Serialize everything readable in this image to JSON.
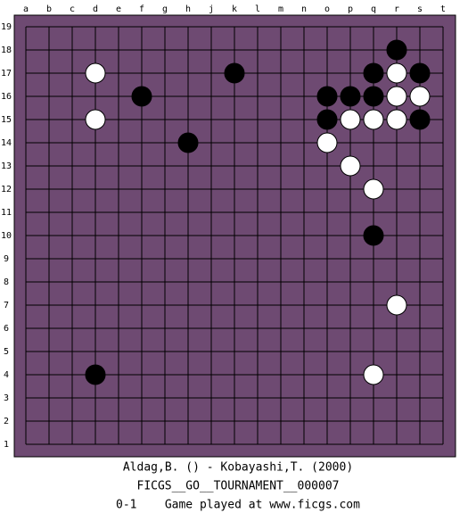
{
  "board": {
    "columns": [
      "a",
      "b",
      "c",
      "d",
      "e",
      "f",
      "g",
      "h",
      "j",
      "k",
      "l",
      "m",
      "n",
      "o",
      "p",
      "q",
      "r",
      "s",
      "t"
    ],
    "rows": [
      19,
      18,
      17,
      16,
      15,
      14,
      13,
      12,
      11,
      10,
      9,
      8,
      7,
      6,
      5,
      4,
      3,
      2,
      1
    ],
    "stones": [
      {
        "color": "black",
        "x": "r",
        "y": 18
      },
      {
        "color": "white",
        "x": "d",
        "y": 17
      },
      {
        "color": "black",
        "x": "k",
        "y": 17
      },
      {
        "color": "black",
        "x": "q",
        "y": 17
      },
      {
        "color": "white",
        "x": "r",
        "y": 17
      },
      {
        "color": "black",
        "x": "s",
        "y": 17
      },
      {
        "color": "black",
        "x": "f",
        "y": 16
      },
      {
        "color": "black",
        "x": "o",
        "y": 16
      },
      {
        "color": "black",
        "x": "p",
        "y": 16
      },
      {
        "color": "black",
        "x": "q",
        "y": 16
      },
      {
        "color": "white",
        "x": "r",
        "y": 16
      },
      {
        "color": "white",
        "x": "s",
        "y": 16
      },
      {
        "color": "white",
        "x": "d",
        "y": 15
      },
      {
        "color": "black",
        "x": "o",
        "y": 15
      },
      {
        "color": "white",
        "x": "p",
        "y": 15
      },
      {
        "color": "white",
        "x": "q",
        "y": 15
      },
      {
        "color": "white",
        "x": "r",
        "y": 15
      },
      {
        "color": "black",
        "x": "s",
        "y": 15
      },
      {
        "color": "black",
        "x": "h",
        "y": 14
      },
      {
        "color": "white",
        "x": "o",
        "y": 14
      },
      {
        "color": "white",
        "x": "p",
        "y": 13
      },
      {
        "color": "white",
        "x": "q",
        "y": 12
      },
      {
        "color": "black",
        "x": "q",
        "y": 10
      },
      {
        "color": "white",
        "x": "r",
        "y": 7
      },
      {
        "color": "black",
        "x": "d",
        "y": 4
      },
      {
        "color": "white",
        "x": "q",
        "y": 4
      }
    ]
  },
  "footer": [
    "Aldag,B. () - Kobayashi,T. (2000)",
    "FICGS__GO__TOURNAMENT__000007",
    "0-1    Game played at www.ficgs.com"
  ]
}
